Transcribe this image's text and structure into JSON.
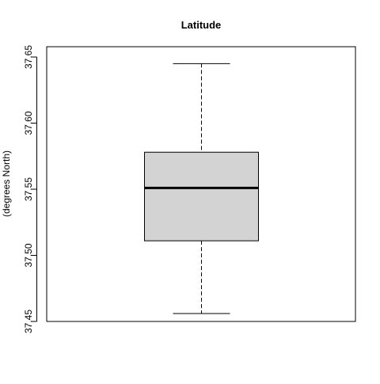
{
  "chart_data": {
    "type": "boxplot",
    "title": "Latitude",
    "xlabel": "",
    "ylabel": "(degrees North)",
    "ylim": [
      37.45,
      37.65
    ],
    "yticks": [
      37.45,
      37.5,
      37.55,
      37.6,
      37.65
    ],
    "ytick_labels": [
      "37.45",
      "37.50",
      "37.55",
      "37.60",
      "37.65"
    ],
    "grid": false,
    "legend": "none",
    "box": {
      "whisker_low": 37.456,
      "q1": 37.511,
      "median": 37.551,
      "q3": 37.578,
      "whisker_high": 37.645
    },
    "colors": {
      "box_fill": "#d3d3d3",
      "stroke": "#000000"
    }
  }
}
